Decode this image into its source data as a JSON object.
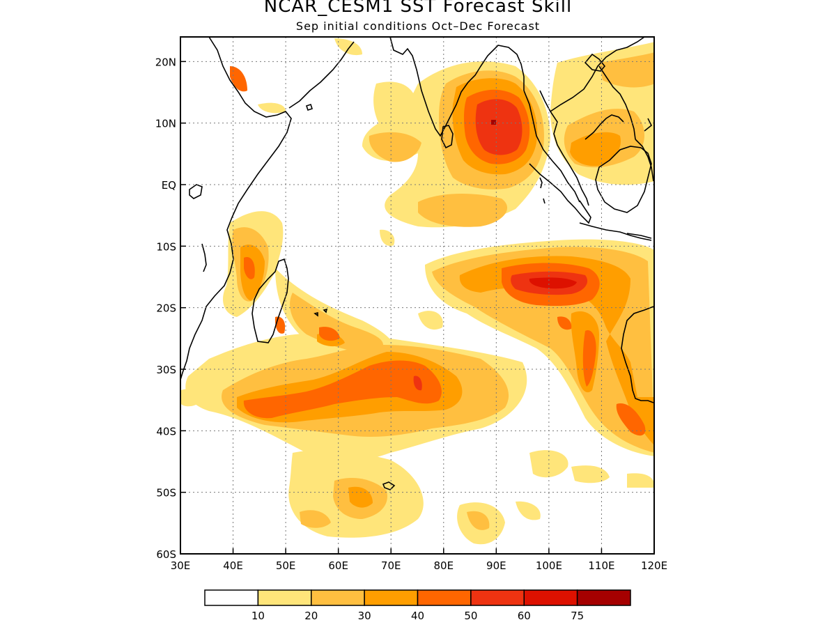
{
  "title": "NCAR_CESM1 SST Forecast Skill",
  "subtitle": "Sep initial conditions  Oct–Dec Forecast",
  "map": {
    "lon_range": [
      30,
      120
    ],
    "lat_range": [
      -60,
      24
    ],
    "lon_ticks": [
      {
        "value": 30,
        "label": "30E"
      },
      {
        "value": 40,
        "label": "40E"
      },
      {
        "value": 50,
        "label": "50E"
      },
      {
        "value": 60,
        "label": "60E"
      },
      {
        "value": 70,
        "label": "70E"
      },
      {
        "value": 80,
        "label": "80E"
      },
      {
        "value": 90,
        "label": "90E"
      },
      {
        "value": 100,
        "label": "100E"
      },
      {
        "value": 110,
        "label": "110E"
      },
      {
        "value": 120,
        "label": "120E"
      }
    ],
    "lat_ticks": [
      {
        "value": 20,
        "label": "20N"
      },
      {
        "value": 10,
        "label": "10N"
      },
      {
        "value": 0,
        "label": "EQ"
      },
      {
        "value": -10,
        "label": "10S"
      },
      {
        "value": -20,
        "label": "20S"
      },
      {
        "value": -30,
        "label": "30S"
      },
      {
        "value": -40,
        "label": "40S"
      },
      {
        "value": -50,
        "label": "50S"
      },
      {
        "value": -60,
        "label": "60S"
      }
    ],
    "grid": true
  },
  "colorbar": {
    "colors": [
      "#ffffff",
      "#ffe57a",
      "#ffbf40",
      "#ff9e00",
      "#ff6600",
      "#ee3311",
      "#dd1100",
      "#a50000"
    ],
    "labels": [
      "10",
      "20",
      "30",
      "40",
      "50",
      "60",
      "75"
    ]
  }
}
